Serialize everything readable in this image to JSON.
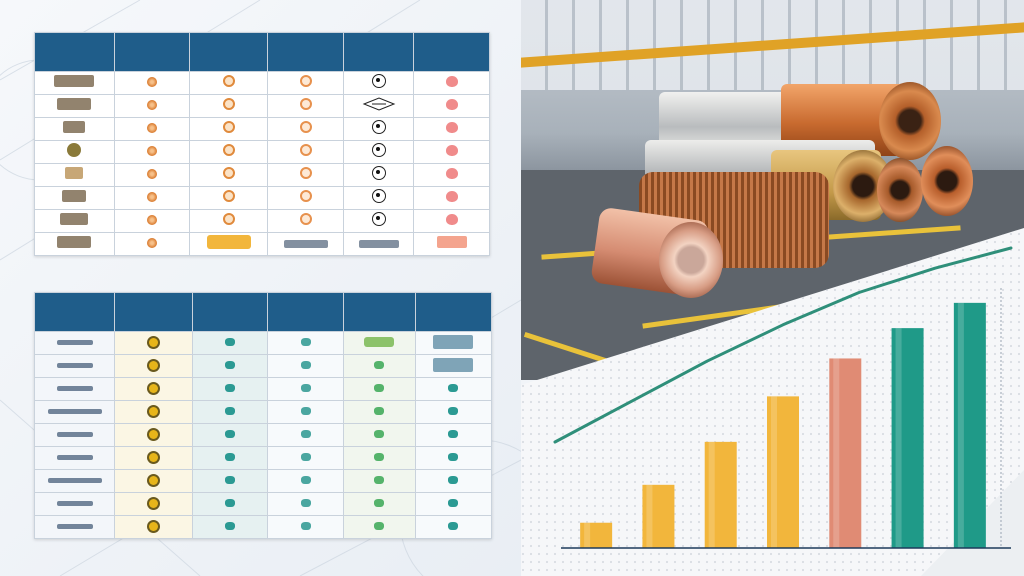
{
  "colors": {
    "table_header": "#1f5d8a",
    "bar_gold": "#f2b63c",
    "bar_copper": "#e08b74",
    "bar_teal": "#1f9a88",
    "trend_line": "#2f8f7a"
  },
  "table_top": {
    "headers": [
      "",
      "",
      "",
      "",
      "",
      ""
    ],
    "rows": 8
  },
  "table_bottom": {
    "headers": [
      "",
      "",
      "",
      "",
      "",
      ""
    ],
    "rows": 9
  },
  "photo": {
    "subject": "copper-and-aluminum-coils-in-factory"
  },
  "chart_data": {
    "type": "bar",
    "categories": [
      "",
      "",
      "",
      "",
      "",
      "",
      ""
    ],
    "series": [
      {
        "values": [
          10,
          25,
          42,
          60,
          75,
          87,
          97
        ]
      }
    ],
    "bar_colors": [
      "#f2b63c",
      "#f2b63c",
      "#f2b63c",
      "#f2b63c",
      "#e08b74",
      "#1f9a88",
      "#1f9a88"
    ],
    "trend_line": [
      52,
      62,
      72,
      81,
      89,
      95,
      100
    ],
    "ylim": [
      0,
      110
    ],
    "title": "",
    "xlabel": "",
    "ylabel": "",
    "grid": false
  }
}
